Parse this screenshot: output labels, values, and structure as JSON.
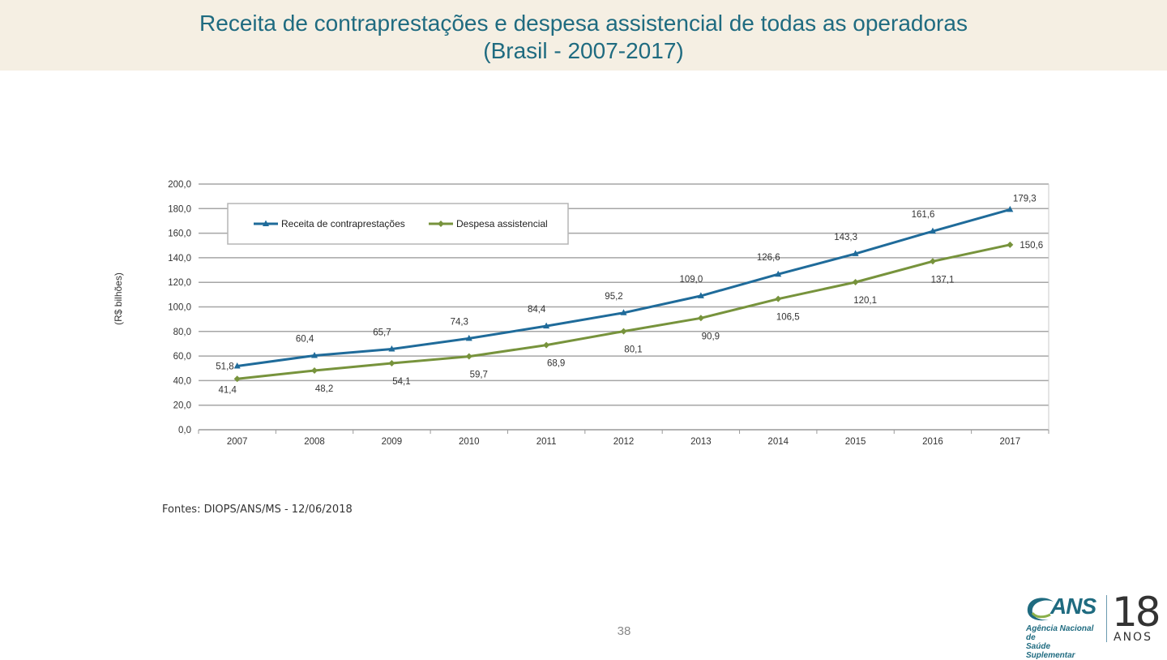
{
  "header": {
    "title_line1": "Receita de contraprestações e despesa assistencial de todas as operadoras",
    "title_line2": "(Brasil - 2007-2017)"
  },
  "chart_data": {
    "type": "line",
    "categories": [
      "2007",
      "2008",
      "2009",
      "2010",
      "2011",
      "2012",
      "2013",
      "2014",
      "2015",
      "2016",
      "2017"
    ],
    "series": [
      {
        "name": "Receita de contraprestações",
        "values": [
          51.8,
          60.4,
          65.7,
          74.3,
          84.4,
          95.2,
          109.0,
          126.6,
          143.3,
          161.6,
          179.3
        ],
        "labels": [
          "51,8",
          "60,4",
          "65,7",
          "74,3",
          "84,4",
          "95,2",
          "109,0",
          "126,6",
          "143,3",
          "161,6",
          "179,3"
        ],
        "color": "#1f6b9a",
        "marker": "triangle"
      },
      {
        "name": "Despesa assistencial",
        "values": [
          41.4,
          48.2,
          54.1,
          59.7,
          68.9,
          80.1,
          90.9,
          106.5,
          120.1,
          137.1,
          150.6
        ],
        "labels": [
          "41,4",
          "48,2",
          "54,1",
          "59,7",
          "68,9",
          "80,1",
          "90,9",
          "106,5",
          "120,1",
          "137,1",
          "150,6"
        ],
        "color": "#77933c",
        "marker": "diamond"
      }
    ],
    "ylabel": "(R$ bilhões)",
    "ylim": [
      0,
      200
    ],
    "ytick_step": 20,
    "ytick_labels": [
      "0,0",
      "20,0",
      "40,0",
      "60,0",
      "80,0",
      "100,0",
      "120,0",
      "140,0",
      "160,0",
      "180,0",
      "200,0"
    ],
    "grid": true,
    "legend_position": "top-left"
  },
  "source": "Fontes: DIOPS/ANS/MS - 12/06/2018",
  "page_number": "38",
  "logo": {
    "brand": "ANS",
    "subtitle_line1": "Agência Nacional de",
    "subtitle_line2": "Saúde Suplementar",
    "years": "18",
    "years_label": "ANOS",
    "color": "#1f6b80"
  }
}
